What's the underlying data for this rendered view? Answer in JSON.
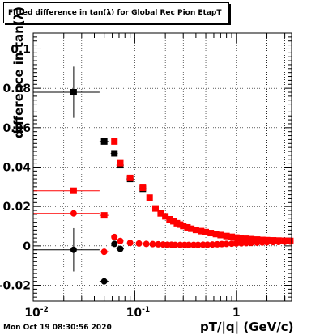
{
  "chart_data": {
    "type": "scatter",
    "title": "Fitted difference in tan(λ) for Global Rec Pion EtapT",
    "xlabel": "pT/|q| (GeV/c)",
    "ylabel": "difference in tan(λ)",
    "x_scale": "log",
    "xlim": [
      0.01,
      3.5
    ],
    "ylim": [
      -0.028,
      0.108
    ],
    "grid": true,
    "x_ticks": [
      {
        "value": 0.01,
        "label": "10",
        "sup": "-2"
      },
      {
        "value": 0.1,
        "label": "10",
        "sup": "-1"
      },
      {
        "value": 1,
        "label": "1",
        "sup": ""
      }
    ],
    "y_ticks": [
      {
        "value": -0.02,
        "label": "-0.02"
      },
      {
        "value": 0,
        "label": "0"
      },
      {
        "value": 0.02,
        "label": "0.02"
      },
      {
        "value": 0.04,
        "label": "0.04"
      },
      {
        "value": 0.06,
        "label": "0.06"
      },
      {
        "value": 0.08,
        "label": "0.08"
      },
      {
        "value": 0.1,
        "label": "0.1"
      }
    ],
    "series": [
      {
        "marker": "square",
        "color": "#000000",
        "points": [
          {
            "x": 0.025,
            "y": 0.078,
            "xlo": 0.01,
            "xhi": 0.045,
            "ylo": 0.065,
            "yhi": 0.091
          },
          {
            "x": 0.05,
            "y": 0.053,
            "xlo": 0.045,
            "xhi": 0.055,
            "ylo": 0.052,
            "yhi": 0.054
          },
          {
            "x": 0.063,
            "y": 0.047,
            "xlo": 0.058,
            "xhi": 0.068,
            "ylo": 0.046,
            "yhi": 0.048
          },
          {
            "x": 0.072,
            "y": 0.041,
            "xlo": 0.066,
            "xhi": 0.078,
            "ylo": 0.0405,
            "yhi": 0.0415
          },
          {
            "x": 0.09,
            "y": 0.034,
            "xlo": 0.083,
            "xhi": 0.098,
            "ylo": 0.0335,
            "yhi": 0.0345
          },
          {
            "x": 0.12,
            "y": 0.029,
            "xlo": 0.11,
            "xhi": 0.13,
            "ylo": 0.0285,
            "yhi": 0.0295
          }
        ]
      },
      {
        "marker": "square",
        "color": "#ff0000",
        "points": [
          {
            "x": 0.025,
            "y": 0.028,
            "xlo": 0.01,
            "xhi": 0.045
          },
          {
            "x": 0.05,
            "y": 0.0155,
            "xlo": 0.045,
            "xhi": 0.055
          },
          {
            "x": 0.063,
            "y": 0.053
          },
          {
            "x": 0.072,
            "y": 0.042
          },
          {
            "x": 0.09,
            "y": 0.0345
          },
          {
            "x": 0.12,
            "y": 0.0295
          },
          {
            "x": 0.14,
            "y": 0.0245
          },
          {
            "x": 0.16,
            "y": 0.019
          },
          {
            "x": 0.18,
            "y": 0.0165
          },
          {
            "x": 0.2,
            "y": 0.015
          },
          {
            "x": 0.22,
            "y": 0.0135
          },
          {
            "x": 0.24,
            "y": 0.0125
          },
          {
            "x": 0.26,
            "y": 0.0115
          },
          {
            "x": 0.28,
            "y": 0.0108
          },
          {
            "x": 0.3,
            "y": 0.0101
          },
          {
            "x": 0.33,
            "y": 0.0094
          },
          {
            "x": 0.36,
            "y": 0.0087
          },
          {
            "x": 0.4,
            "y": 0.0081
          },
          {
            "x": 0.45,
            "y": 0.0075
          },
          {
            "x": 0.5,
            "y": 0.007
          },
          {
            "x": 0.56,
            "y": 0.0065
          },
          {
            "x": 0.63,
            "y": 0.006
          },
          {
            "x": 0.7,
            "y": 0.0055
          },
          {
            "x": 0.8,
            "y": 0.005
          },
          {
            "x": 0.9,
            "y": 0.0046
          },
          {
            "x": 1.0,
            "y": 0.0042
          },
          {
            "x": 1.1,
            "y": 0.0039
          },
          {
            "x": 1.25,
            "y": 0.0036
          },
          {
            "x": 1.4,
            "y": 0.0034
          },
          {
            "x": 1.6,
            "y": 0.0032
          },
          {
            "x": 1.8,
            "y": 0.003
          },
          {
            "x": 2.0,
            "y": 0.0029
          },
          {
            "x": 2.3,
            "y": 0.0028
          },
          {
            "x": 2.6,
            "y": 0.0027
          },
          {
            "x": 3.0,
            "y": 0.0026
          },
          {
            "x": 3.4,
            "y": 0.0025
          }
        ]
      },
      {
        "marker": "circle",
        "color": "#000000",
        "points": [
          {
            "x": 0.025,
            "y": -0.002,
            "xlo": 0.01,
            "xhi": 0.045,
            "ylo": -0.013,
            "yhi": 0.009
          },
          {
            "x": 0.05,
            "y": -0.018,
            "xlo": 0.045,
            "xhi": 0.055,
            "ylo": -0.0195,
            "yhi": -0.0165
          },
          {
            "x": 0.063,
            "y": 0.001,
            "xlo": 0.058,
            "xhi": 0.068,
            "ylo": 0.0,
            "yhi": 0.002
          },
          {
            "x": 0.072,
            "y": -0.0015,
            "xlo": 0.066,
            "xhi": 0.078,
            "ylo": -0.002,
            "yhi": -0.001
          }
        ]
      },
      {
        "marker": "circle",
        "color": "#ff0000",
        "points": [
          {
            "x": 0.025,
            "y": 0.0165,
            "xlo": 0.01,
            "xhi": 0.045
          },
          {
            "x": 0.05,
            "y": -0.003,
            "xlo": 0.045,
            "xhi": 0.055
          },
          {
            "x": 0.063,
            "y": 0.0045
          },
          {
            "x": 0.072,
            "y": 0.0025
          },
          {
            "x": 0.09,
            "y": 0.0015
          },
          {
            "x": 0.11,
            "y": 0.0012
          },
          {
            "x": 0.13,
            "y": 0.001
          },
          {
            "x": 0.15,
            "y": 0.0009
          },
          {
            "x": 0.17,
            "y": 0.0008
          },
          {
            "x": 0.19,
            "y": 0.0007
          },
          {
            "x": 0.21,
            "y": 0.0006
          },
          {
            "x": 0.23,
            "y": 0.0006
          },
          {
            "x": 0.25,
            "y": 0.0005
          },
          {
            "x": 0.28,
            "y": 0.0005
          },
          {
            "x": 0.31,
            "y": 0.0005
          },
          {
            "x": 0.34,
            "y": 0.0005
          },
          {
            "x": 0.38,
            "y": 0.0005
          },
          {
            "x": 0.42,
            "y": 0.0005
          },
          {
            "x": 0.47,
            "y": 0.0006
          },
          {
            "x": 0.52,
            "y": 0.0006
          },
          {
            "x": 0.58,
            "y": 0.0007
          },
          {
            "x": 0.65,
            "y": 0.0008
          },
          {
            "x": 0.72,
            "y": 0.0009
          },
          {
            "x": 0.8,
            "y": 0.001
          },
          {
            "x": 0.9,
            "y": 0.0011
          },
          {
            "x": 1.0,
            "y": 0.0012
          },
          {
            "x": 1.12,
            "y": 0.0013
          },
          {
            "x": 1.25,
            "y": 0.0014
          },
          {
            "x": 1.4,
            "y": 0.0015
          },
          {
            "x": 1.6,
            "y": 0.0016
          },
          {
            "x": 1.8,
            "y": 0.0017
          },
          {
            "x": 2.0,
            "y": 0.0018
          },
          {
            "x": 2.3,
            "y": 0.0019
          },
          {
            "x": 2.6,
            "y": 0.002
          },
          {
            "x": 3.0,
            "y": 0.0021
          },
          {
            "x": 3.4,
            "y": 0.0022
          }
        ]
      }
    ]
  },
  "footer_timestamp": "Mon Oct 19 08:30:56 2020"
}
